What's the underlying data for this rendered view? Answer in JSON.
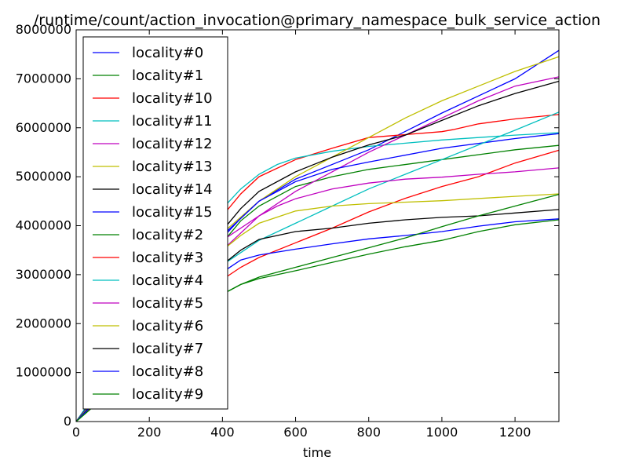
{
  "chart_data": {
    "type": "line",
    "title": "/runtime/count/action_invocation@primary_namespace_bulk_service_action",
    "xlabel": "time",
    "ylabel": "",
    "xlim": [
      0,
      1320
    ],
    "ylim": [
      0,
      8000000
    ],
    "xticks": [
      0,
      200,
      400,
      600,
      800,
      1000,
      1200
    ],
    "yticks": [
      0,
      1000000,
      2000000,
      3000000,
      4000000,
      5000000,
      6000000,
      7000000,
      8000000
    ],
    "grid": false,
    "legend_position": "upper-left",
    "series": [
      {
        "name": "locality#0",
        "color": "#0000ff",
        "x": [
          0,
          400,
          450,
          500,
          600,
          800,
          1000,
          1200,
          1320
        ],
        "y": [
          0,
          3750000,
          4150000,
          4500000,
          4950000,
          5550000,
          6300000,
          7000000,
          7580000
        ]
      },
      {
        "name": "locality#1",
        "color": "#008000",
        "x": [
          0,
          400,
          450,
          500,
          600,
          700,
          800,
          1000,
          1200,
          1320
        ],
        "y": [
          0,
          3650000,
          4100000,
          4400000,
          4800000,
          5000000,
          5150000,
          5350000,
          5550000,
          5640000
        ]
      },
      {
        "name": "locality#10",
        "color": "#ff0000",
        "x": [
          0,
          400,
          450,
          500,
          600,
          700,
          800,
          1000,
          1030,
          1100,
          1200,
          1320
        ],
        "y": [
          0,
          4200000,
          4650000,
          5000000,
          5350000,
          5580000,
          5800000,
          5920000,
          5960000,
          6080000,
          6180000,
          6270000
        ]
      },
      {
        "name": "locality#11",
        "color": "#00bfbf",
        "x": [
          0,
          400,
          450,
          500,
          550,
          600,
          700,
          800,
          1000,
          1200,
          1320
        ],
        "y": [
          0,
          4350000,
          4750000,
          5050000,
          5250000,
          5380000,
          5520000,
          5620000,
          5750000,
          5850000,
          5900000
        ]
      },
      {
        "name": "locality#12",
        "color": "#bf00bf",
        "x": [
          0,
          400,
          500,
          600,
          700,
          800,
          900,
          1000,
          1100,
          1200,
          1320
        ],
        "y": [
          0,
          3700000,
          4200000,
          4700000,
          5100000,
          5500000,
          5850000,
          6200000,
          6550000,
          6850000,
          7040000
        ]
      },
      {
        "name": "locality#13",
        "color": "#bfbf00",
        "x": [
          0,
          400,
          500,
          600,
          700,
          800,
          900,
          1000,
          1100,
          1200,
          1320
        ],
        "y": [
          0,
          3850000,
          4500000,
          5000000,
          5400000,
          5800000,
          6200000,
          6550000,
          6850000,
          7150000,
          7450000
        ]
      },
      {
        "name": "locality#14",
        "color": "#000000",
        "x": [
          0,
          400,
          450,
          500,
          600,
          700,
          800,
          900,
          1000,
          1100,
          1200,
          1320
        ],
        "y": [
          0,
          3900000,
          4350000,
          4700000,
          5100000,
          5400000,
          5650000,
          5850000,
          6150000,
          6450000,
          6700000,
          6950000
        ]
      },
      {
        "name": "locality#15",
        "color": "#0000ff",
        "x": [
          0,
          400,
          450,
          500,
          600,
          700,
          800,
          1000,
          1200,
          1320
        ],
        "y": [
          0,
          3800000,
          4150000,
          4500000,
          4900000,
          5150000,
          5300000,
          5580000,
          5780000,
          5880000
        ]
      },
      {
        "name": "locality#2",
        "color": "#008000",
        "x": [
          0,
          400,
          450,
          500,
          600,
          700,
          800,
          900,
          1000,
          1100,
          1200,
          1320
        ],
        "y": [
          0,
          2600000,
          2800000,
          2920000,
          3080000,
          3250000,
          3420000,
          3570000,
          3700000,
          3880000,
          4020000,
          4120000
        ]
      },
      {
        "name": "locality#3",
        "color": "#ff0000",
        "x": [
          0,
          400,
          450,
          500,
          600,
          700,
          800,
          900,
          1000,
          1100,
          1200,
          1320
        ],
        "y": [
          0,
          2900000,
          3150000,
          3350000,
          3650000,
          3950000,
          4280000,
          4560000,
          4800000,
          5000000,
          5280000,
          5540000
        ]
      },
      {
        "name": "locality#4",
        "color": "#00bfbf",
        "x": [
          0,
          400,
          450,
          500,
          600,
          700,
          800,
          900,
          1000,
          1100,
          1200,
          1320
        ],
        "y": [
          0,
          3200000,
          3450000,
          3700000,
          4050000,
          4400000,
          4750000,
          5050000,
          5350000,
          5650000,
          5950000,
          6320000
        ]
      },
      {
        "name": "locality#5",
        "color": "#bf00bf",
        "x": [
          0,
          400,
          500,
          550,
          600,
          700,
          800,
          900,
          1000,
          1100,
          1200,
          1320
        ],
        "y": [
          0,
          3500000,
          4200000,
          4400000,
          4550000,
          4750000,
          4870000,
          4950000,
          4990000,
          5050000,
          5100000,
          5180000
        ]
      },
      {
        "name": "locality#6",
        "color": "#bfbf00",
        "x": [
          0,
          400,
          450,
          500,
          600,
          700,
          800,
          1000,
          1200,
          1320
        ],
        "y": [
          0,
          3500000,
          3800000,
          4050000,
          4300000,
          4400000,
          4450000,
          4510000,
          4600000,
          4650000
        ]
      },
      {
        "name": "locality#7",
        "color": "#000000",
        "x": [
          0,
          400,
          450,
          500,
          600,
          700,
          800,
          900,
          1000,
          1100,
          1200,
          1320
        ],
        "y": [
          0,
          3200000,
          3500000,
          3720000,
          3880000,
          3950000,
          4050000,
          4120000,
          4170000,
          4200000,
          4260000,
          4330000
        ]
      },
      {
        "name": "locality#8",
        "color": "#0000ff",
        "x": [
          0,
          400,
          450,
          500,
          600,
          700,
          800,
          900,
          1000,
          1100,
          1200,
          1320
        ],
        "y": [
          0,
          3050000,
          3300000,
          3400000,
          3520000,
          3630000,
          3730000,
          3800000,
          3880000,
          3990000,
          4080000,
          4140000
        ]
      },
      {
        "name": "locality#9",
        "color": "#008000",
        "x": [
          0,
          400,
          450,
          500,
          600,
          700,
          800,
          900,
          1000,
          1100,
          1200,
          1320
        ],
        "y": [
          0,
          2600000,
          2800000,
          2950000,
          3150000,
          3350000,
          3550000,
          3750000,
          3980000,
          4200000,
          4400000,
          4640000
        ]
      }
    ]
  }
}
